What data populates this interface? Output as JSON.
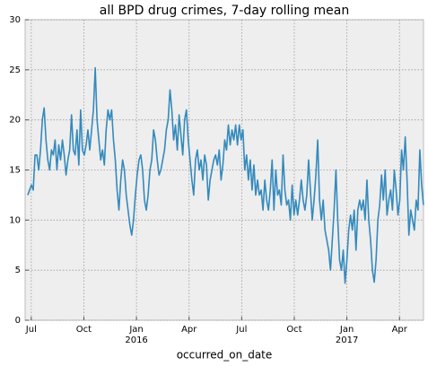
{
  "chart_data": {
    "type": "line",
    "title": "all BPD drug crimes, 7-day rolling mean",
    "xlabel": "occurred_on_date",
    "color": "#348abd",
    "grid": true,
    "xlim": [
      6.65,
      29.37
    ],
    "ylim": [
      0,
      30
    ],
    "yticks": [
      0,
      5,
      10,
      15,
      20,
      25,
      30
    ],
    "xticks": [
      {
        "value": 7,
        "label": "Jul"
      },
      {
        "value": 10,
        "label": "Oct"
      },
      {
        "value": 13,
        "label": "Jan\n2016"
      },
      {
        "value": 16,
        "label": "Apr"
      },
      {
        "value": 19,
        "label": "Jul"
      },
      {
        "value": 22,
        "label": "Oct"
      },
      {
        "value": 25,
        "label": "Jan\n2017"
      },
      {
        "value": 28,
        "label": "Apr"
      }
    ],
    "x": [
      6.8,
      6.904,
      7.008,
      7.112,
      7.216,
      7.32,
      7.424,
      7.528,
      7.632,
      7.736,
      7.84,
      7.944,
      8.048,
      8.152,
      8.256,
      8.36,
      8.464,
      8.568,
      8.672,
      8.776,
      8.88,
      8.984,
      9.088,
      9.192,
      9.296,
      9.4,
      9.504,
      9.608,
      9.712,
      9.816,
      9.92,
      10.024,
      10.128,
      10.232,
      10.336,
      10.44,
      10.544,
      10.648,
      10.752,
      10.856,
      10.96,
      11.064,
      11.168,
      11.272,
      11.376,
      11.48,
      11.584,
      11.688,
      11.792,
      11.896,
      12.0,
      12.104,
      12.208,
      12.312,
      12.416,
      12.52,
      12.624,
      12.728,
      12.832,
      12.936,
      13.04,
      13.144,
      13.248,
      13.352,
      13.456,
      13.56,
      13.664,
      13.768,
      13.872,
      13.976,
      14.08,
      14.184,
      14.288,
      14.392,
      14.496,
      14.6,
      14.704,
      14.808,
      14.912,
      15.016,
      15.12,
      15.224,
      15.328,
      15.432,
      15.536,
      15.64,
      15.744,
      15.848,
      15.952,
      16.056,
      16.16,
      16.264,
      16.368,
      16.472,
      16.576,
      16.68,
      16.784,
      16.888,
      16.992,
      17.096,
      17.2,
      17.304,
      17.408,
      17.512,
      17.616,
      17.72,
      17.824,
      17.928,
      18.032,
      18.136,
      18.24,
      18.344,
      18.448,
      18.552,
      18.656,
      18.76,
      18.864,
      18.968,
      19.072,
      19.176,
      19.28,
      19.384,
      19.488,
      19.592,
      19.696,
      19.8,
      19.904,
      20.008,
      20.112,
      20.216,
      20.32,
      20.424,
      20.528,
      20.632,
      20.736,
      20.84,
      20.944,
      21.048,
      21.152,
      21.256,
      21.36,
      21.464,
      21.568,
      21.672,
      21.776,
      21.88,
      21.984,
      22.088,
      22.192,
      22.296,
      22.4,
      22.504,
      22.608,
      22.712,
      22.816,
      22.92,
      23.024,
      23.128,
      23.232,
      23.336,
      23.44,
      23.544,
      23.648,
      23.752,
      23.856,
      23.96,
      24.064,
      24.168,
      24.272,
      24.376,
      24.48,
      24.584,
      24.688,
      24.792,
      24.896,
      25.0,
      25.104,
      25.208,
      25.312,
      25.416,
      25.52,
      25.624,
      25.728,
      25.832,
      25.936,
      26.04,
      26.144,
      26.248,
      26.352,
      26.456,
      26.56,
      26.664,
      26.768,
      26.872,
      26.976,
      27.08,
      27.184,
      27.288,
      27.392,
      27.496,
      27.6,
      27.704,
      27.808,
      27.912,
      28.016,
      28.12,
      28.224,
      28.328,
      28.432,
      28.536,
      28.64,
      28.744,
      28.848,
      28.952,
      29.056,
      29.16,
      29.264,
      29.368
    ],
    "values": [
      12.5,
      13,
      13.5,
      13,
      16.5,
      16.5,
      15,
      17,
      20,
      21.2,
      18,
      16,
      15,
      17,
      16.5,
      18,
      15,
      17.5,
      16,
      18,
      16.5,
      14.5,
      16,
      17,
      20.5,
      17,
      16.5,
      19,
      15.5,
      21,
      17,
      16.5,
      17.5,
      19,
      17,
      19,
      21,
      25.2,
      20,
      18,
      16,
      17,
      15.5,
      19,
      21,
      20,
      21,
      18,
      16,
      13,
      11,
      14,
      16,
      15,
      12.5,
      11,
      9.5,
      8.5,
      10,
      12.5,
      14.5,
      16,
      16.5,
      15,
      12,
      11,
      12.5,
      15,
      16,
      19,
      18,
      16,
      14.5,
      15,
      16,
      17,
      19,
      20,
      23,
      21,
      18,
      19.5,
      17,
      20.5,
      18.5,
      16.5,
      20,
      21,
      18,
      16,
      14,
      12.5,
      16,
      17,
      15,
      16,
      14,
      16.5,
      15.5,
      12,
      14,
      15,
      16,
      16.5,
      15.5,
      17,
      14,
      15.5,
      18,
      17,
      19.5,
      17.5,
      19,
      18,
      19.5,
      17.5,
      19.5,
      18,
      19,
      15,
      16.5,
      14,
      16,
      13,
      15.5,
      12.5,
      14,
      12.5,
      13,
      11,
      14,
      12,
      11,
      13,
      16,
      11,
      15,
      12.5,
      13,
      11.5,
      16.5,
      13,
      11.5,
      12,
      10,
      13.5,
      10.5,
      12,
      10.5,
      12,
      14,
      12,
      11,
      12.5,
      16,
      13,
      10,
      12,
      14.5,
      18,
      12,
      10,
      12,
      9,
      8,
      7,
      5,
      8,
      11,
      15,
      10,
      6,
      5,
      7,
      3.7,
      6,
      9,
      10.5,
      9,
      11,
      7,
      11,
      12,
      11,
      12,
      10,
      14,
      10,
      8,
      5,
      3.8,
      6,
      10,
      11.5,
      14.5,
      12,
      15,
      10.5,
      12,
      13,
      11,
      15,
      13,
      10.5,
      12,
      17,
      15,
      18.3,
      14,
      8.5,
      11,
      10,
      9,
      12,
      11,
      17,
      13.5,
      11.5
    ]
  }
}
